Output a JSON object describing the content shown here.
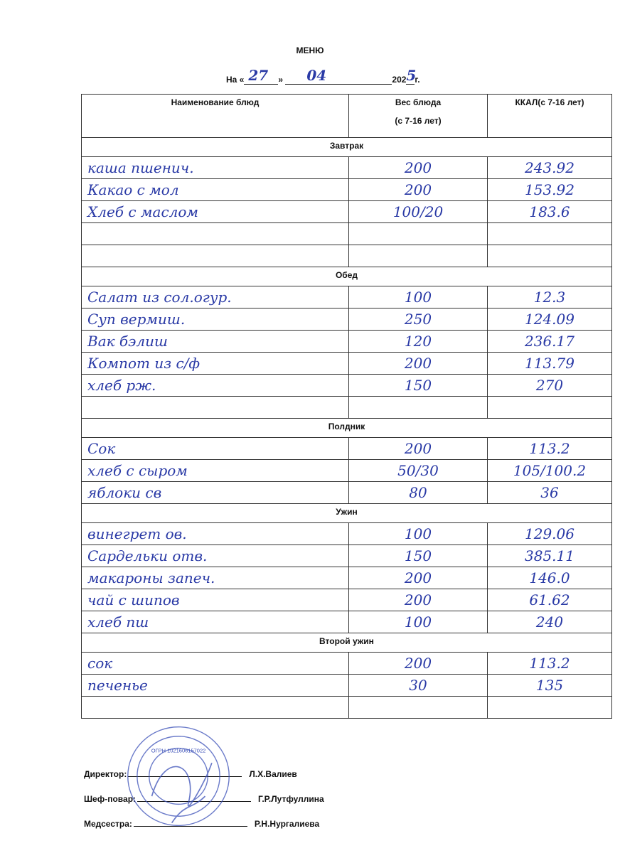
{
  "header": {
    "title": "МЕНЮ",
    "date_prefix": "На «",
    "date_mid": "»",
    "day": "27",
    "month": "04",
    "year_prefix": "202",
    "year_digit": "5",
    "year_suffix": "г."
  },
  "columns": [
    "Наименование блюд",
    "Вес блюда",
    "(с 7-16 лет)",
    "ККАЛ(с 7-16 лет)"
  ],
  "sections": [
    {
      "title": "Завтрак",
      "rows": [
        {
          "name": "каша пшенич.",
          "weight": "200",
          "kcal": "243.92"
        },
        {
          "name": "Какао с мол",
          "weight": "200",
          "kcal": "153.92"
        },
        {
          "name": "Хлеб с маслом",
          "weight": "100/20",
          "kcal": "183.6"
        },
        {
          "name": "",
          "weight": "",
          "kcal": ""
        },
        {
          "name": "",
          "weight": "",
          "kcal": ""
        }
      ]
    },
    {
      "title": "Обед",
      "rows": [
        {
          "name": "Салат из сол.огур.",
          "weight": "100",
          "kcal": "12.3"
        },
        {
          "name": "Суп вермиш.",
          "weight": "250",
          "kcal": "124.09"
        },
        {
          "name": "Вак бэлиш",
          "weight": "120",
          "kcal": "236.17"
        },
        {
          "name": "Компот из с/ф",
          "weight": "200",
          "kcal": "113.79"
        },
        {
          "name": "хлеб рж.",
          "weight": "150",
          "kcal": "270"
        },
        {
          "name": "",
          "weight": "",
          "kcal": ""
        }
      ]
    },
    {
      "title": "Полдник",
      "rows": [
        {
          "name": "Сок",
          "weight": "200",
          "kcal": "113.2"
        },
        {
          "name": "хлеб с сыром",
          "weight": "50/30",
          "kcal": "105/100.2"
        },
        {
          "name": "яблоки св",
          "weight": "80",
          "kcal": "36"
        }
      ]
    },
    {
      "title": "Ужин",
      "rows": [
        {
          "name": "винегрет ов.",
          "weight": "100",
          "kcal": "129.06"
        },
        {
          "name": "Сардельки отв.",
          "weight": "150",
          "kcal": "385.11"
        },
        {
          "name": "макароны запеч.",
          "weight": "200",
          "kcal": "146.0"
        },
        {
          "name": "чай с шипов",
          "weight": "200",
          "kcal": "61.62"
        },
        {
          "name": "хлеб пш",
          "weight": "100",
          "kcal": "240"
        }
      ]
    },
    {
      "title": "Второй ужин",
      "rows": [
        {
          "name": "сок",
          "weight": "200",
          "kcal": "113.2"
        },
        {
          "name": "печенье",
          "weight": "30",
          "kcal": "135"
        },
        {
          "name": "",
          "weight": "",
          "kcal": ""
        }
      ]
    }
  ],
  "signatures": [
    {
      "role": "Директор:",
      "name": "Л.Х.Валиев"
    },
    {
      "role": "Шеф-повар:",
      "name": "Г.Р.Лутфуллина"
    },
    {
      "role": "Медсестра:",
      "name": "Р.Н.Нургалиева"
    }
  ],
  "stamp": {
    "ogrn": "ОГРН 1021606157022",
    "color": "#3a4fb8"
  },
  "ink_color": "#2a3aa6"
}
